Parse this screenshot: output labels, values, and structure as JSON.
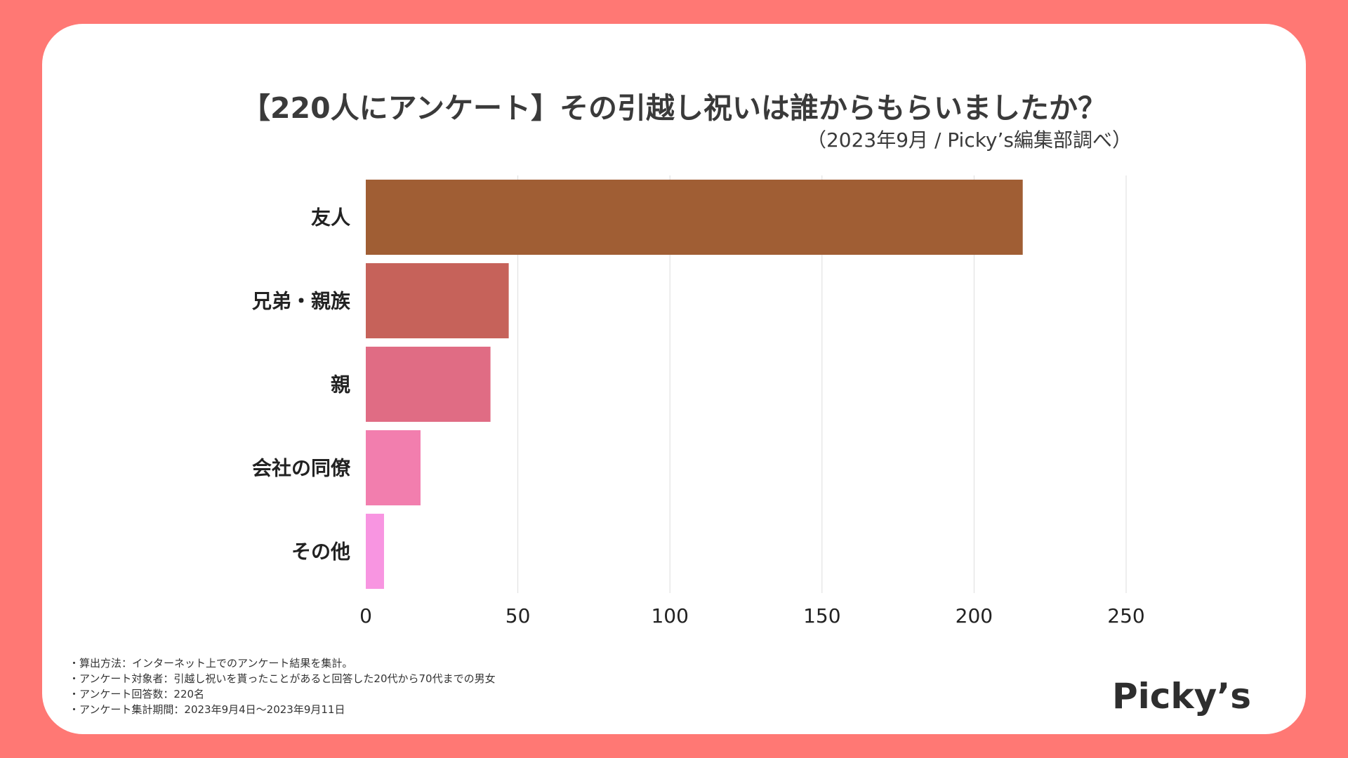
{
  "header": {
    "title": "【220人にアンケート】その引越し祝いは誰からもらいましたか？",
    "subtitle": "（2023年9月 / Picky’s編集部調べ）"
  },
  "chart_data": {
    "type": "bar",
    "orientation": "horizontal",
    "title": "【220人にアンケート】その引越し祝いは誰からもらいましたか？",
    "xlabel": "",
    "ylabel": "",
    "categories": [
      "友人",
      "兄弟・親族",
      "親",
      "会社の同僚",
      "その他"
    ],
    "values": [
      216,
      47,
      41,
      18,
      6
    ],
    "colors": [
      "#A05E34",
      "#C6625A",
      "#E06C84",
      "#F27EAE",
      "#F895E1"
    ],
    "xlim": [
      0,
      250
    ],
    "xticks": [
      0,
      50,
      100,
      150,
      200,
      250
    ],
    "grid": true,
    "legend": "none"
  },
  "footer": {
    "notes": [
      "・算出方法：インターネット上でのアンケート結果を集計。",
      "・アンケート対象者：引越し祝いを貰ったことがあると回答した20代から70代までの男女",
      "・アンケート回答数：220名",
      "・アンケート集計期間：2023年9月4日〜2023年9月11日"
    ],
    "logo_text": "Picky’s"
  },
  "colors": {
    "background": "#FF7874",
    "card": "#FFFFFF",
    "text": "#3A3A3A",
    "grid": "#DDDDDD"
  }
}
